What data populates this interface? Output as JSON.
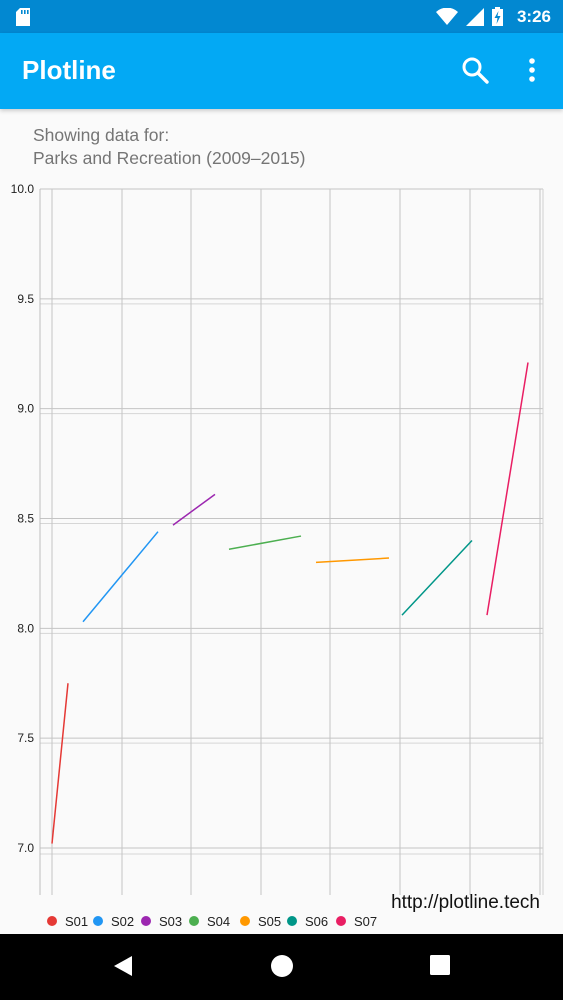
{
  "status_bar": {
    "time": "3:26",
    "icons": [
      "sd-card-icon",
      "wifi-icon",
      "signal-icon",
      "battery-charging-icon"
    ]
  },
  "app_bar": {
    "title": "Plotline",
    "actions": [
      "search-icon",
      "overflow-menu-icon"
    ]
  },
  "subtitle": {
    "line1": "Showing data for:",
    "line2": "Parks and Recreation (2009–2015)"
  },
  "chart_data": {
    "type": "line",
    "ylim": [
      7.0,
      10.0
    ],
    "y_ticks": [
      "7.0",
      "7.5",
      "8.0",
      "8.5",
      "9.0",
      "9.5",
      "10.0"
    ],
    "grid": true,
    "legend_position": "bottom-left",
    "watermark": "http://plotline.tech",
    "series": [
      {
        "name": "S01",
        "color": "#e53935",
        "start": 7.02,
        "end": 7.75
      },
      {
        "name": "S02",
        "color": "#2196f3",
        "start": 8.03,
        "end": 8.44
      },
      {
        "name": "S03",
        "color": "#9c27b0",
        "start": 8.47,
        "end": 8.61
      },
      {
        "name": "S04",
        "color": "#4caf50",
        "start": 8.36,
        "end": 8.42
      },
      {
        "name": "S05",
        "color": "#ff9800",
        "start": 8.3,
        "end": 8.32
      },
      {
        "name": "S06",
        "color": "#009688",
        "start": 8.06,
        "end": 8.4
      },
      {
        "name": "S07",
        "color": "#e91e63",
        "start": 8.06,
        "end": 9.21
      }
    ]
  },
  "nav_bar": {
    "buttons": [
      "back-icon",
      "home-icon",
      "recents-icon"
    ]
  }
}
